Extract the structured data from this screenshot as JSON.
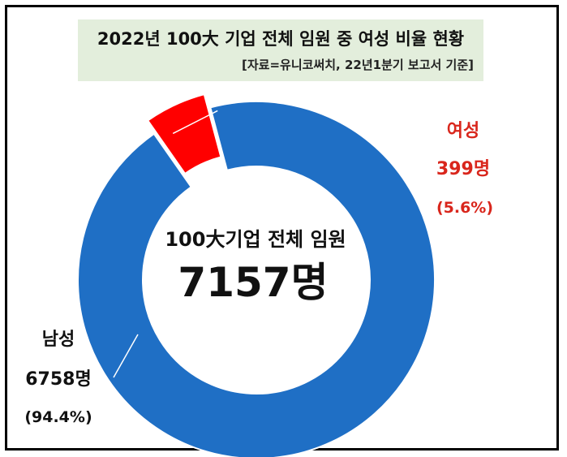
{
  "header": {
    "title": "2022년 100大 기업 전체 임원 중 여성 비율 현황",
    "source": "[자료=유니코써치, 22년1분기 보고서 기준]"
  },
  "center": {
    "label": "100大기업 전체 임원",
    "total": "7157명"
  },
  "labels": {
    "female": {
      "name": "여성",
      "count": "399명",
      "pct": "(5.6%)"
    },
    "male": {
      "name": "남성",
      "count": "6758명",
      "pct": "(94.4%)"
    }
  },
  "colors": {
    "male": "#1f6fc5",
    "female": "#ff0000",
    "female_text": "#d9261c"
  },
  "chart_data": {
    "type": "pie",
    "title": "2022년 100大 기업 전체 임원 중 여성 비율 현황",
    "categories": [
      "여성",
      "남성"
    ],
    "values": [
      399,
      6758
    ],
    "percentages": [
      5.6,
      94.4
    ],
    "total": 7157,
    "exploded": "여성"
  }
}
